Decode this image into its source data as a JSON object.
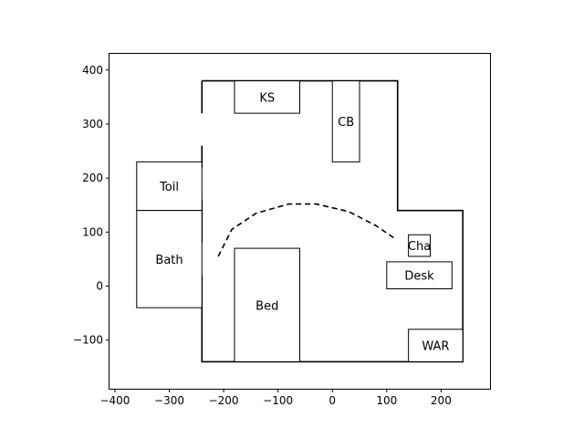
{
  "chart_data": {
    "type": "floor-plan",
    "xlim": [
      -410,
      290
    ],
    "ylim": [
      -190,
      430
    ],
    "x_ticks": [
      -400,
      -300,
      -200,
      -100,
      0,
      100,
      200
    ],
    "y_ticks": [
      -100,
      0,
      100,
      200,
      300,
      400
    ],
    "x_tick_labels": [
      "−400",
      "−300",
      "−200",
      "−100",
      "0",
      "100",
      "200"
    ],
    "y_tick_labels": [
      "−100",
      "0",
      "100",
      "200",
      "300",
      "400"
    ],
    "walls": [
      [
        -240,
        380
      ],
      [
        120,
        380
      ],
      [
        120,
        140
      ],
      [
        240,
        140
      ],
      [
        240,
        -140
      ],
      [
        -240,
        -140
      ],
      [
        -240,
        380
      ]
    ],
    "doors": [
      {
        "x": -240,
        "y0": 260,
        "y1": 320
      },
      {
        "x": -240,
        "y0": 160,
        "y1": 220
      },
      {
        "x": -240,
        "y0": 20,
        "y1": 80
      }
    ],
    "furniture": [
      {
        "label": "KS",
        "x0": -180,
        "y0": 320,
        "x1": -60,
        "y1": 380
      },
      {
        "label": "CB",
        "x0": 0,
        "y0": 230,
        "x1": 50,
        "y1": 380
      },
      {
        "label": "Toil",
        "x0": -360,
        "y0": 140,
        "x1": -240,
        "y1": 230
      },
      {
        "label": "Bath",
        "x0": -360,
        "y0": -40,
        "x1": -240,
        "y1": 140
      },
      {
        "label": "Bed",
        "x0": -180,
        "y0": -140,
        "x1": -60,
        "y1": 70
      },
      {
        "label": "Cha",
        "x0": 140,
        "y0": 55,
        "x1": 180,
        "y1": 95
      },
      {
        "label": "Desk",
        "x0": 100,
        "y0": -5,
        "x1": 220,
        "y1": 45
      },
      {
        "label": "WAR",
        "x0": 140,
        "y0": -140,
        "x1": 240,
        "y1": -80
      }
    ],
    "path": [
      [
        -210,
        55
      ],
      [
        -185,
        105
      ],
      [
        -140,
        135
      ],
      [
        -80,
        152
      ],
      [
        -30,
        152
      ],
      [
        30,
        138
      ],
      [
        80,
        112
      ],
      [
        115,
        88
      ]
    ],
    "grid": false
  }
}
